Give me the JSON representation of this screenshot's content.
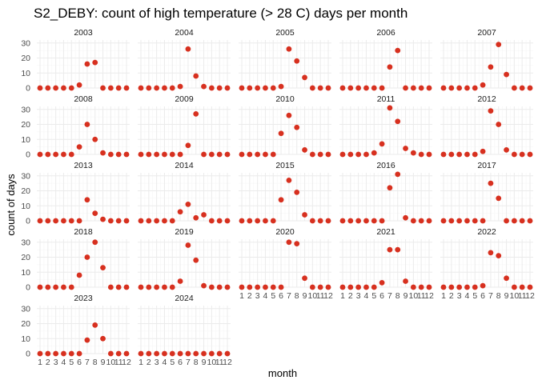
{
  "chart_data": {
    "type": "scatter",
    "title": "S2_DEBY: count of high temperature (> 28 C) days per month",
    "xlabel": "month",
    "ylabel": "count of days",
    "x_ticks": [
      "1",
      "2",
      "3",
      "4",
      "5",
      "6",
      "7",
      "8",
      "9",
      "10",
      "11",
      "12"
    ],
    "y_ticks": [
      0,
      10,
      20,
      30
    ],
    "ylim": [
      0,
      32
    ],
    "xlim": [
      1,
      12
    ],
    "grid": true,
    "point_color": "#d7301f",
    "facets": [
      {
        "label": "2003",
        "values": [
          0,
          0,
          0,
          0,
          0,
          2,
          16,
          17,
          0,
          0,
          0,
          0
        ]
      },
      {
        "label": "2004",
        "values": [
          0,
          0,
          0,
          0,
          0,
          1,
          26,
          8,
          1,
          0,
          0,
          0
        ]
      },
      {
        "label": "2005",
        "values": [
          0,
          0,
          0,
          0,
          0,
          1,
          26,
          18,
          7,
          0,
          0,
          0
        ]
      },
      {
        "label": "2006",
        "values": [
          0,
          0,
          0,
          0,
          0,
          0,
          14,
          25,
          0,
          0,
          0,
          0
        ]
      },
      {
        "label": "2007",
        "values": [
          0,
          0,
          0,
          0,
          0,
          2,
          14,
          29,
          9,
          0,
          0,
          0
        ]
      },
      {
        "label": "2008",
        "values": [
          0,
          0,
          0,
          0,
          0,
          5,
          20,
          10,
          1,
          0,
          0,
          0
        ]
      },
      {
        "label": "2009",
        "values": [
          0,
          0,
          0,
          0,
          0,
          0,
          6,
          27,
          0,
          0,
          0,
          0
        ]
      },
      {
        "label": "2010",
        "values": [
          0,
          0,
          0,
          0,
          0,
          14,
          26,
          18,
          3,
          0,
          0,
          0
        ]
      },
      {
        "label": "2011",
        "values": [
          0,
          0,
          0,
          0,
          1,
          7,
          31,
          22,
          4,
          1,
          0,
          0
        ]
      },
      {
        "label": "2012",
        "values": [
          0,
          0,
          0,
          0,
          0,
          2,
          29,
          20,
          3,
          0,
          0,
          0
        ]
      },
      {
        "label": "2013",
        "values": [
          0,
          0,
          0,
          0,
          0,
          0,
          14,
          5,
          1,
          0,
          0,
          0
        ]
      },
      {
        "label": "2014",
        "values": [
          0,
          0,
          0,
          0,
          0,
          6,
          11,
          2,
          4,
          0,
          0,
          0
        ]
      },
      {
        "label": "2015",
        "values": [
          0,
          0,
          0,
          0,
          0,
          14,
          27,
          19,
          4,
          0,
          0,
          0
        ]
      },
      {
        "label": "2016",
        "values": [
          0,
          0,
          0,
          0,
          0,
          0,
          22,
          31,
          2,
          0,
          0,
          0
        ]
      },
      {
        "label": "2017",
        "values": [
          0,
          0,
          0,
          0,
          0,
          0,
          25,
          15,
          0,
          0,
          0,
          0
        ]
      },
      {
        "label": "2018",
        "values": [
          0,
          0,
          0,
          0,
          0,
          8,
          20,
          30,
          13,
          0,
          0,
          0
        ]
      },
      {
        "label": "2019",
        "values": [
          0,
          0,
          0,
          0,
          0,
          4,
          28,
          18,
          1,
          0,
          0,
          0
        ]
      },
      {
        "label": "2020",
        "values": [
          0,
          0,
          0,
          0,
          0,
          0,
          30,
          29,
          6,
          0,
          0,
          0
        ]
      },
      {
        "label": "2021",
        "values": [
          0,
          0,
          0,
          0,
          0,
          3,
          25,
          25,
          4,
          0,
          0,
          0
        ]
      },
      {
        "label": "2022",
        "values": [
          0,
          0,
          0,
          0,
          0,
          1,
          23,
          21,
          6,
          0,
          0,
          0
        ]
      },
      {
        "label": "2023",
        "values": [
          0,
          0,
          0,
          0,
          0,
          0,
          9,
          19,
          10,
          0,
          0,
          0
        ]
      },
      {
        "label": "2024",
        "values": [
          0,
          0,
          0,
          0,
          0,
          0,
          0,
          0,
          0,
          0,
          0,
          0
        ]
      }
    ]
  }
}
